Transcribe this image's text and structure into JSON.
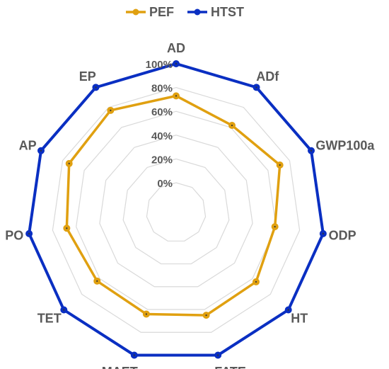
{
  "chart_data": {
    "type": "radar",
    "categories": [
      "AD",
      "ADf",
      "GWP100a",
      "ODP",
      "HT",
      "FATE",
      "MAET",
      "TET",
      "PO",
      "AP",
      "EP"
    ],
    "series": [
      {
        "name": "PEF",
        "color": "#E0A010",
        "values": [
          73,
          62,
          71,
          59,
          64,
          65,
          64,
          63,
          68,
          74,
          77
        ]
      },
      {
        "name": "HTST",
        "color": "#0A2FC2",
        "values": [
          100,
          100,
          100,
          100,
          100,
          100,
          100,
          100,
          100,
          100,
          100
        ]
      }
    ],
    "ticks": [
      "0%",
      "20%",
      "40%",
      "60%",
      "80%",
      "100%"
    ],
    "tick_values": [
      0,
      20,
      40,
      60,
      80,
      100
    ],
    "rmin": -25,
    "rmax": 100,
    "grid": true,
    "legend_position": "top",
    "grid_color": "#D9D9D9"
  }
}
